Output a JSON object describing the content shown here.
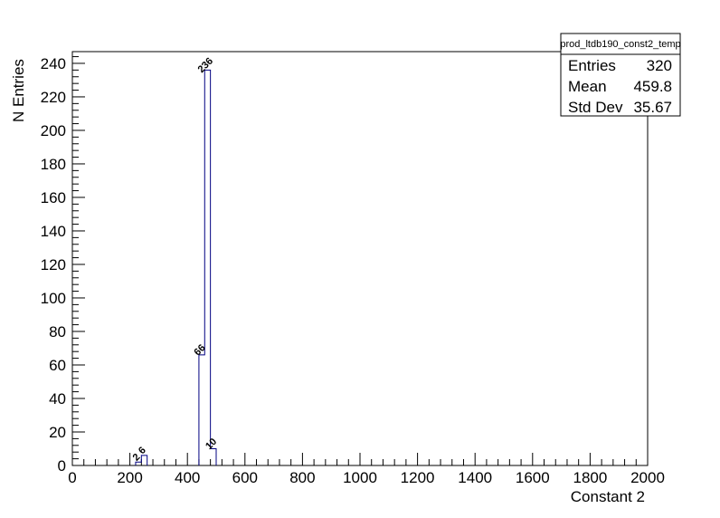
{
  "chart_data": {
    "type": "bar",
    "histogram": true,
    "xlabel": "Constant 2",
    "ylabel": "N Entries",
    "xlim": [
      0,
      2000
    ],
    "ylim": [
      0,
      247
    ],
    "x_ticks": [
      0,
      200,
      400,
      600,
      800,
      1000,
      1200,
      1400,
      1600,
      1800,
      2000
    ],
    "y_ticks": [
      0,
      20,
      40,
      60,
      80,
      100,
      120,
      140,
      160,
      180,
      200,
      220,
      240
    ],
    "bin_width": 20,
    "bins": [
      {
        "x0": 220,
        "x1": 240,
        "value": 2,
        "label": "2"
      },
      {
        "x0": 240,
        "x1": 260,
        "value": 6,
        "label": "6"
      },
      {
        "x0": 440,
        "x1": 460,
        "value": 66,
        "label": "66"
      },
      {
        "x0": 460,
        "x1": 480,
        "value": 236,
        "label": "236"
      },
      {
        "x0": 480,
        "x1": 500,
        "value": 10,
        "label": "10"
      }
    ],
    "line_color": "#000080",
    "grid": false,
    "legend": "top-right",
    "stats_box": {
      "title": "prod_ltdb190_const2_temp",
      "rows": [
        {
          "label": "Entries",
          "value": "320"
        },
        {
          "label": "Mean",
          "value": "459.8"
        },
        {
          "label": "Std Dev",
          "value": "35.67"
        }
      ]
    }
  }
}
